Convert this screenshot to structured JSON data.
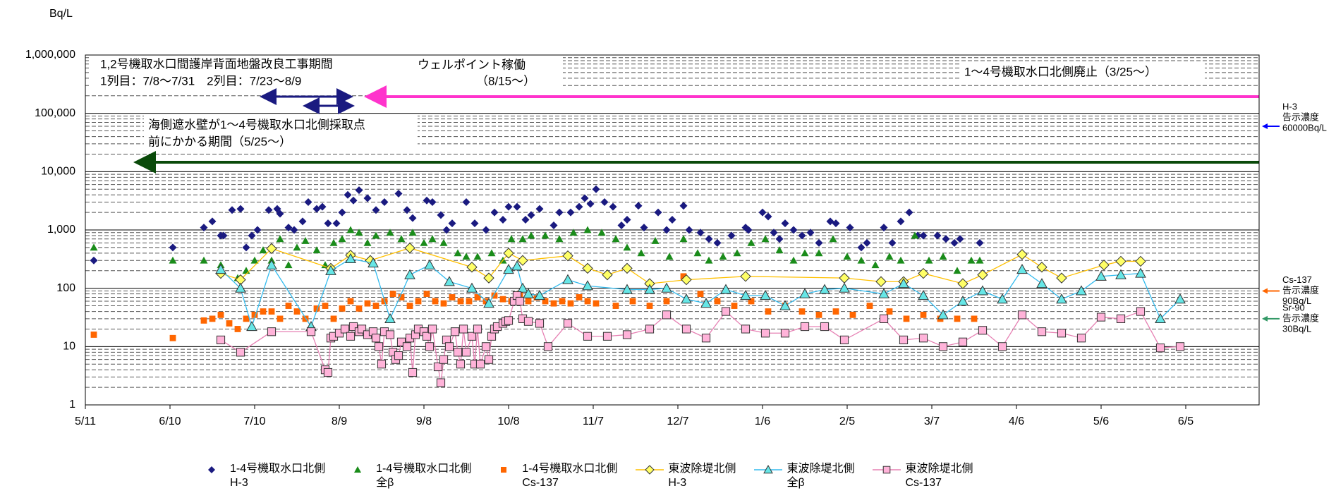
{
  "chart_data": {
    "type": "scatter",
    "y_unit": "Bq/L",
    "log_y": true,
    "grid": true,
    "minor_grid": true,
    "xlim": [
      0,
      416
    ],
    "xticks": [
      {
        "value": 0,
        "label": "5/11"
      },
      {
        "value": 30,
        "label": "6/10"
      },
      {
        "value": 60,
        "label": "7/10"
      },
      {
        "value": 90,
        "label": "8/9"
      },
      {
        "value": 120,
        "label": "9/8"
      },
      {
        "value": 150,
        "label": "10/8"
      },
      {
        "value": 180,
        "label": "11/7"
      },
      {
        "value": 210,
        "label": "12/7"
      },
      {
        "value": 240,
        "label": "1/6"
      },
      {
        "value": 270,
        "label": "2/5"
      },
      {
        "value": 300,
        "label": "3/7"
      },
      {
        "value": 330,
        "label": "4/6"
      },
      {
        "value": 360,
        "label": "5/6"
      },
      {
        "value": 390,
        "label": "6/5"
      }
    ],
    "ylim": [
      1,
      1000000
    ],
    "yticks": [
      1,
      10,
      100,
      {
        "value": 1000,
        "label": "1,000"
      },
      {
        "value": 10000,
        "label": "10,000"
      },
      {
        "value": 100000,
        "label": "100,000"
      },
      {
        "value": 1000000,
        "label": "1,000,000"
      }
    ],
    "annotations": [
      "1,2号機取水口間護岸背面地盤改良工事期間",
      "1列目：7/8～7/31　2列目：7/23～8/9",
      "ウェルポイント稼働",
      "（8/15～）",
      "1～4号機取水口北側廃止（3/25～）",
      "海側遮水壁が1～4号機取水口北側採取点",
      "前にかかる期間（5/25～）"
    ],
    "reference_levels": [
      {
        "lines": [
          "H-3",
          "告示濃度",
          "60000Bq/L"
        ],
        "value": 60000,
        "color": "#0000ff"
      },
      {
        "lines": [
          "Cs-137",
          "告示濃度",
          "90Bq/L"
        ],
        "value": 90,
        "color": "#ff6600"
      },
      {
        "lines": [
          "Sr-90",
          "告示濃度",
          "30Bq/L"
        ],
        "value": 30,
        "color": "#339966"
      }
    ],
    "series": [
      {
        "name": "1-4号機取水口北側\nH-3",
        "color": "#1a1a80",
        "marker": "diamond",
        "line": false,
        "x": [
          3,
          31,
          42,
          45,
          48,
          49,
          52,
          55,
          57,
          59,
          61,
          65,
          68,
          69,
          72,
          74,
          77,
          79,
          82,
          84,
          86,
          89,
          91,
          93,
          95,
          97,
          100,
          103,
          106,
          111,
          114,
          116,
          121,
          123,
          126,
          128,
          130,
          135,
          138,
          142,
          145,
          148,
          150,
          153,
          156,
          158,
          161,
          166,
          168,
          172,
          175,
          177,
          179,
          181,
          184,
          187,
          190,
          192,
          196,
          198,
          203,
          206,
          208,
          212,
          214,
          218,
          221,
          224,
          229,
          234,
          235,
          240,
          242,
          244,
          246,
          248,
          251,
          254,
          257,
          260,
          264,
          266,
          271,
          275,
          277,
          283,
          286,
          289,
          292,
          295,
          297,
          302,
          305,
          308,
          310,
          317
        ],
        "values": [
          300,
          500,
          1100,
          1400,
          800,
          800,
          2200,
          2300,
          500,
          800,
          1000,
          2200,
          2300,
          1900,
          1100,
          1000,
          1400,
          3000,
          2300,
          2500,
          1300,
          1300,
          2000,
          4000,
          3200,
          4800,
          3500,
          2200,
          3000,
          4200,
          2200,
          1600,
          3200,
          3000,
          1800,
          1000,
          1300,
          3000,
          1300,
          1000,
          2000,
          1500,
          2500,
          2500,
          1500,
          1800,
          2300,
          1200,
          2000,
          2000,
          2500,
          3500,
          2800,
          5000,
          3000,
          2500,
          1200,
          1500,
          2600,
          1100,
          2000,
          1000,
          1500,
          2600,
          1000,
          900,
          700,
          600,
          800,
          1100,
          1000,
          2000,
          1700,
          900,
          700,
          1300,
          1000,
          800,
          900,
          600,
          1400,
          1300,
          1100,
          500,
          600,
          1100,
          600,
          1400,
          2000,
          800,
          800,
          800,
          700,
          600,
          700,
          600
        ]
      },
      {
        "name": "1-4号機取水口北側\n全β",
        "color": "#1a8c1a",
        "marker": "triangle",
        "line": false,
        "x": [
          3,
          31,
          42,
          48,
          54,
          57,
          60,
          63,
          66,
          69,
          72,
          75,
          78,
          82,
          85,
          88,
          91,
          94,
          97,
          100,
          103,
          108,
          112,
          116,
          120,
          123,
          127,
          132,
          135,
          139,
          144,
          148,
          151,
          155,
          158,
          163,
          168,
          173,
          178,
          183,
          188,
          192,
          197,
          202,
          207,
          212,
          217,
          221,
          226,
          231,
          236,
          241,
          246,
          251,
          255,
          260,
          265,
          270,
          275,
          280,
          285,
          289,
          294,
          299,
          304,
          309,
          314,
          317
        ],
        "values": [
          500,
          300,
          300,
          250,
          150,
          200,
          300,
          450,
          300,
          700,
          250,
          500,
          650,
          450,
          250,
          600,
          700,
          1000,
          900,
          600,
          800,
          900,
          700,
          900,
          600,
          700,
          600,
          400,
          350,
          350,
          400,
          300,
          700,
          700,
          800,
          800,
          700,
          900,
          1000,
          900,
          700,
          500,
          400,
          650,
          350,
          700,
          400,
          300,
          350,
          400,
          600,
          700,
          450,
          300,
          400,
          400,
          700,
          350,
          300,
          250,
          350,
          300,
          800,
          300,
          350,
          200,
          300,
          300
        ]
      },
      {
        "name": "1-4号機取水口北側\nCs-137",
        "color": "#ff6600",
        "marker": "square",
        "line": false,
        "x": [
          3,
          31,
          42,
          45,
          48,
          51,
          54,
          57,
          60,
          63,
          66,
          69,
          72,
          75,
          78,
          82,
          85,
          88,
          91,
          94,
          97,
          100,
          103,
          106,
          109,
          112,
          115,
          118,
          121,
          124,
          127,
          130,
          133,
          136,
          139,
          142,
          145,
          148,
          151,
          154,
          157,
          160,
          163,
          166,
          169,
          172,
          175,
          178,
          181,
          188,
          194,
          200,
          206,
          212,
          218,
          224,
          230,
          236,
          242,
          248,
          254,
          260,
          266,
          272,
          278,
          285,
          291,
          297,
          303,
          309,
          315
        ],
        "values": [
          16,
          14,
          28,
          30,
          35,
          25,
          20,
          30,
          35,
          40,
          40,
          30,
          50,
          40,
          30,
          45,
          50,
          30,
          45,
          60,
          45,
          55,
          50,
          60,
          80,
          70,
          50,
          60,
          80,
          60,
          55,
          70,
          60,
          60,
          70,
          60,
          75,
          65,
          60,
          80,
          60,
          70,
          60,
          55,
          60,
          55,
          70,
          60,
          55,
          50,
          60,
          50,
          60,
          160,
          80,
          60,
          50,
          60,
          40,
          50,
          40,
          35,
          40,
          35,
          50,
          40,
          30,
          35,
          30,
          30,
          30
        ]
      },
      {
        "name": "東波除堤北側\nH-3",
        "color": "#ffff66",
        "line_color": "#ffc000",
        "marker": "diamond",
        "line": true,
        "x": [
          48,
          55,
          66,
          87,
          94,
          101,
          115,
          137,
          143,
          150,
          155,
          171,
          178,
          185,
          192,
          200,
          213,
          234,
          269,
          282,
          290,
          297,
          311,
          318,
          332,
          339,
          346,
          361,
          367,
          374
        ],
        "values": [
          180,
          140,
          480,
          220,
          370,
          300,
          490,
          230,
          150,
          400,
          300,
          360,
          220,
          170,
          220,
          120,
          140,
          160,
          150,
          130,
          130,
          180,
          120,
          170,
          380,
          230,
          150,
          250,
          290,
          290
        ]
      },
      {
        "name": "東波除堤北側\n全β",
        "color": "#66e6e6",
        "line_color": "#33bbee",
        "marker": "triangle",
        "line": true,
        "x": [
          48,
          55,
          59,
          66,
          80,
          87,
          94,
          102,
          108,
          115,
          122,
          129,
          137,
          143,
          150,
          153,
          155,
          157,
          161,
          171,
          178,
          192,
          200,
          206,
          213,
          220,
          227,
          234,
          241,
          248,
          255,
          262,
          269,
          283,
          290,
          297,
          304,
          311,
          318,
          325,
          332,
          339,
          346,
          353,
          360,
          367,
          374,
          381,
          388
        ],
        "values": [
          210,
          100,
          22,
          250,
          22,
          200,
          320,
          270,
          30,
          170,
          250,
          130,
          100,
          55,
          210,
          240,
          100,
          80,
          75,
          140,
          110,
          95,
          95,
          100,
          65,
          55,
          95,
          75,
          75,
          50,
          80,
          95,
          100,
          80,
          120,
          75,
          35,
          60,
          90,
          65,
          210,
          120,
          65,
          90,
          160,
          170,
          180,
          30,
          65
        ]
      },
      {
        "name": "東波除堤北側\nCs-137",
        "color": "#ffb3d9",
        "line_color": "#e680b3",
        "marker": "square",
        "line": true,
        "x": [
          48,
          55,
          66,
          80,
          85,
          86,
          87,
          88,
          90,
          92,
          94,
          95,
          97,
          98,
          100,
          102,
          103,
          104,
          105,
          106,
          108,
          109,
          110,
          111,
          112,
          114,
          115,
          116,
          117,
          118,
          120,
          121,
          122,
          123,
          125,
          126,
          127,
          128,
          129,
          131,
          132,
          133,
          134,
          135,
          137,
          138,
          139,
          140,
          142,
          143,
          144,
          145,
          146,
          148,
          149,
          150,
          152,
          153,
          154,
          155,
          157,
          161,
          164,
          171,
          178,
          185,
          192,
          200,
          206,
          213,
          220,
          227,
          234,
          241,
          248,
          255,
          262,
          269,
          283,
          290,
          297,
          304,
          311,
          318,
          325,
          332,
          339,
          346,
          353,
          360,
          367,
          374,
          381,
          388
        ],
        "values": [
          13,
          8,
          18,
          18,
          4,
          3.6,
          14,
          15,
          17,
          20,
          15,
          22,
          18,
          20,
          16,
          18,
          14,
          10,
          5,
          18,
          16,
          8,
          6,
          7,
          12,
          10,
          14,
          3.6,
          16,
          20,
          18,
          15,
          10,
          20,
          4.5,
          2.4,
          6,
          13,
          10,
          18,
          8,
          5,
          20,
          8,
          15,
          5,
          20,
          5,
          10,
          6,
          15,
          20,
          22,
          25,
          27,
          28,
          60,
          75,
          60,
          30,
          27,
          25,
          10,
          25,
          15,
          15,
          16,
          20,
          35,
          20,
          14,
          40,
          20,
          17,
          17,
          22,
          22,
          13,
          30,
          13,
          14,
          10,
          12,
          19,
          10,
          35,
          18,
          17,
          14,
          32,
          30,
          40,
          9.5,
          10
        ]
      }
    ]
  }
}
